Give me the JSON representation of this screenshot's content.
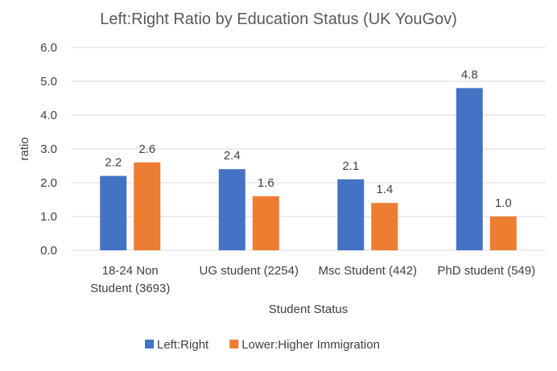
{
  "chart_data": {
    "type": "bar",
    "title": "Left:Right Ratio by Education Status (UK YouGov)",
    "xlabel": "Student Status",
    "ylabel": "ratio",
    "ylim": [
      0,
      6
    ],
    "yticks": [
      "0.0",
      "1.0",
      "2.0",
      "3.0",
      "4.0",
      "5.0",
      "6.0"
    ],
    "categories": [
      [
        "18-24 Non",
        "Student (3693)"
      ],
      [
        "UG student (2254)"
      ],
      [
        "Msc Student (442)"
      ],
      [
        "PhD student (549)"
      ]
    ],
    "series": [
      {
        "name": "Left:Right",
        "color": "#4472C4",
        "values": [
          2.2,
          2.4,
          2.1,
          4.8
        ],
        "labels": [
          "2.2",
          "2.4",
          "2.1",
          "4.8"
        ]
      },
      {
        "name": "Lower:Higher Immigration",
        "color": "#ED7D31",
        "values": [
          2.6,
          1.6,
          1.4,
          1.0
        ],
        "labels": [
          "2.6",
          "1.6",
          "1.4",
          "1.0"
        ]
      }
    ],
    "grid": true,
    "legend_position": "bottom"
  }
}
